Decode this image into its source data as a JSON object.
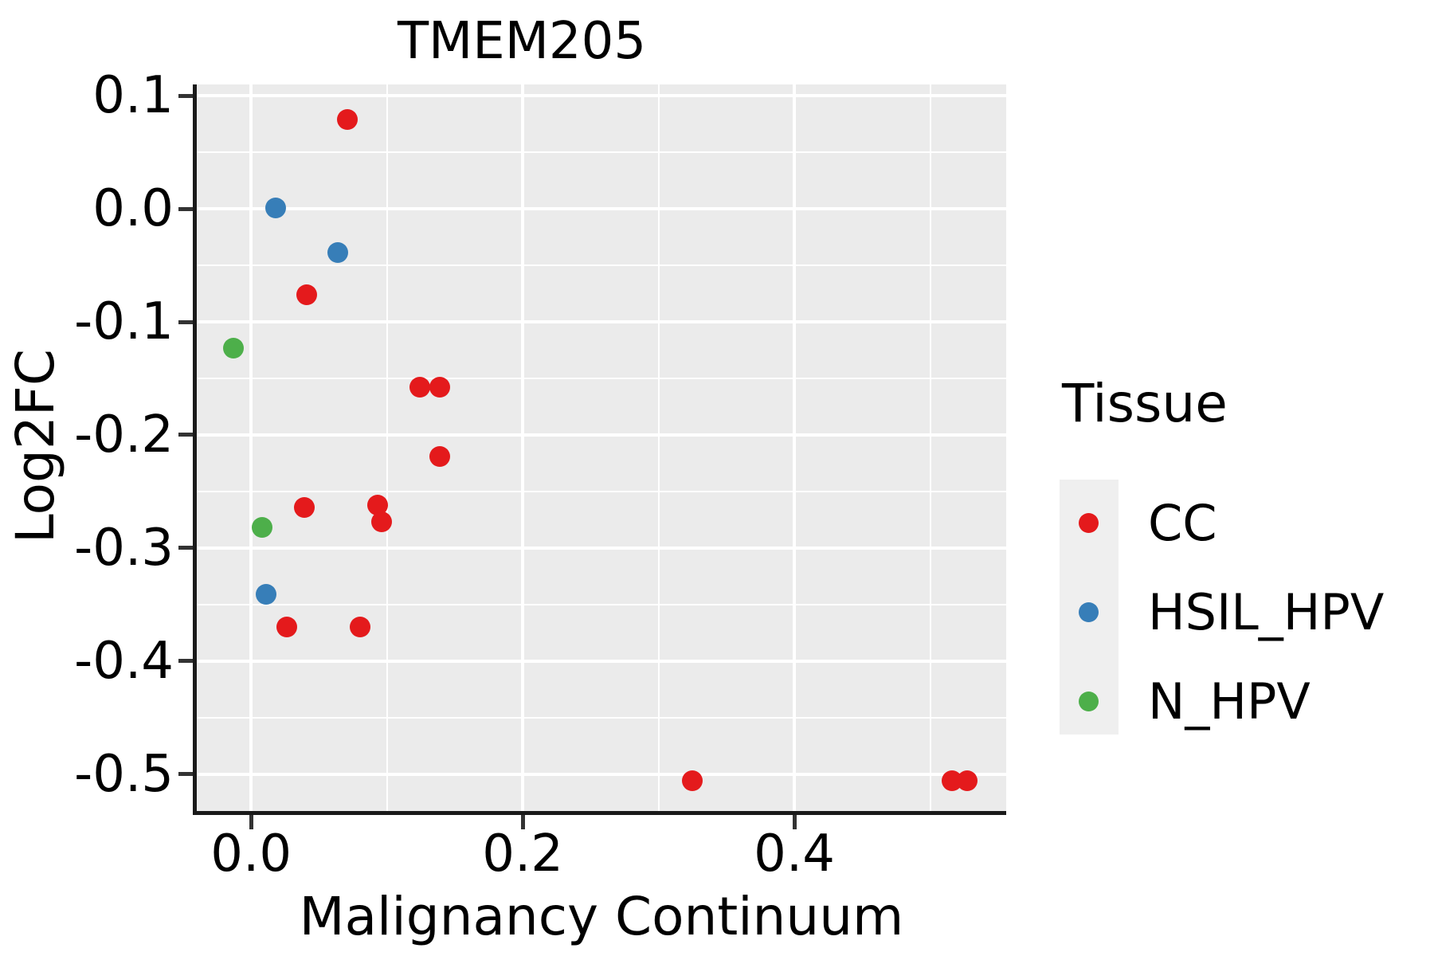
{
  "chart_data": {
    "type": "scatter",
    "title": "TMEM205",
    "xlabel": "Malignancy Continuum",
    "ylabel": "Log2FC",
    "x_range": [
      -0.04,
      0.556
    ],
    "y_range": [
      -0.534,
      0.11
    ],
    "x_ticks": [
      {
        "v": 0.0,
        "label": "0.0"
      },
      {
        "v": 0.2,
        "label": "0.2"
      },
      {
        "v": 0.4,
        "label": "0.4"
      }
    ],
    "y_ticks": [
      {
        "v": 0.1,
        "label": "0.1"
      },
      {
        "v": 0.0,
        "label": "0.0"
      },
      {
        "v": -0.1,
        "label": "-0.1"
      },
      {
        "v": -0.2,
        "label": "-0.2"
      },
      {
        "v": -0.3,
        "label": "-0.3"
      },
      {
        "v": -0.4,
        "label": "-0.4"
      },
      {
        "v": -0.5,
        "label": "-0.5"
      }
    ],
    "x_minor_ticks": [
      0.1,
      0.3,
      0.5
    ],
    "y_minor_ticks": [
      0.05,
      -0.05,
      -0.15,
      -0.25,
      -0.35,
      -0.45
    ],
    "grid": true,
    "panel_bg": "#EBEBEB",
    "grid_color": "#FFFFFF",
    "legend": {
      "title": "Tissue",
      "position": "right",
      "entries": [
        {
          "label": "CC",
          "color": "#E41A1C"
        },
        {
          "label": "HSIL_HPV",
          "color": "#377EB8"
        },
        {
          "label": "N_HPV",
          "color": "#4DAF4A"
        }
      ]
    },
    "series": [
      {
        "name": "CC",
        "color": "#E41A1C",
        "points": [
          [
            0.071,
            0.079
          ],
          [
            0.041,
            -0.076
          ],
          [
            0.124,
            -0.158
          ],
          [
            0.139,
            -0.158
          ],
          [
            0.139,
            -0.219
          ],
          [
            0.039,
            -0.264
          ],
          [
            0.093,
            -0.262
          ],
          [
            0.096,
            -0.277
          ],
          [
            0.026,
            -0.37
          ],
          [
            0.08,
            -0.37
          ],
          [
            0.325,
            -0.506
          ],
          [
            0.516,
            -0.506
          ],
          [
            0.527,
            -0.506
          ]
        ]
      },
      {
        "name": "HSIL_HPV",
        "color": "#377EB8",
        "points": [
          [
            0.018,
            0.001
          ],
          [
            0.064,
            -0.039
          ],
          [
            0.011,
            -0.341
          ]
        ]
      },
      {
        "name": "N_HPV",
        "color": "#4DAF4A",
        "points": [
          [
            -0.013,
            -0.123
          ],
          [
            0.008,
            -0.282
          ]
        ]
      }
    ]
  }
}
